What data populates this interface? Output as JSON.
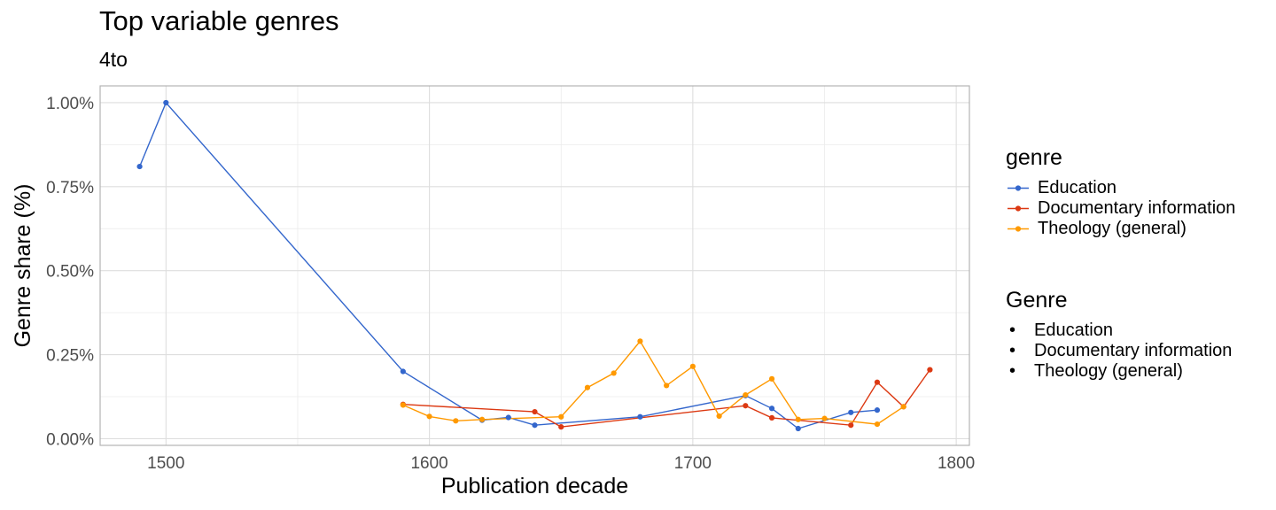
{
  "chart_data": {
    "type": "line",
    "title": "Top variable genres",
    "subtitle": "4to",
    "xlabel": "Publication decade",
    "ylabel": "Genre share (%)",
    "xlim": [
      1475,
      1805
    ],
    "ylim": [
      -0.02,
      1.05
    ],
    "x_ticks": [
      1500,
      1600,
      1700,
      1800
    ],
    "x_tick_labels": [
      "1500",
      "1600",
      "1700",
      "1800"
    ],
    "y_ticks": [
      0,
      0.25,
      0.5,
      0.75,
      1.0
    ],
    "y_tick_labels": [
      "0.00%",
      "0.25%",
      "0.50%",
      "0.75%",
      "1.00%"
    ],
    "grid": true,
    "legend_position": "right",
    "legends": [
      {
        "title": "genre",
        "kind": "line-point",
        "entries": [
          "Education",
          "Documentary information",
          "Theology (general)"
        ]
      },
      {
        "title": "Genre",
        "kind": "bullet",
        "entries": [
          "Education",
          "Documentary information",
          "Theology (general)"
        ]
      }
    ],
    "series": [
      {
        "name": "Education",
        "color": "#3366cc",
        "x": [
          1490,
          1500,
          1590,
          1620,
          1630,
          1640,
          1680,
          1720,
          1730,
          1740,
          1760,
          1770
        ],
        "y": [
          0.81,
          1.0,
          0.2,
          0.055,
          0.063,
          0.04,
          0.065,
          0.128,
          0.09,
          0.03,
          0.078,
          0.085
        ]
      },
      {
        "name": "Documentary information",
        "color": "#dc3912",
        "x": [
          1590,
          1640,
          1650,
          1720,
          1730,
          1760,
          1770,
          1780,
          1790
        ],
        "y": [
          0.102,
          0.08,
          0.035,
          0.098,
          0.062,
          0.04,
          0.168,
          0.095,
          0.205
        ]
      },
      {
        "name": "Theology (general)",
        "color": "#ff9900",
        "x": [
          1590,
          1600,
          1610,
          1620,
          1650,
          1660,
          1670,
          1680,
          1690,
          1700,
          1710,
          1720,
          1730,
          1740,
          1750,
          1770,
          1780
        ],
        "y": [
          0.1,
          0.066,
          0.053,
          0.057,
          0.065,
          0.152,
          0.195,
          0.29,
          0.158,
          0.215,
          0.067,
          0.13,
          0.178,
          0.057,
          0.06,
          0.043,
          0.095
        ]
      }
    ]
  }
}
